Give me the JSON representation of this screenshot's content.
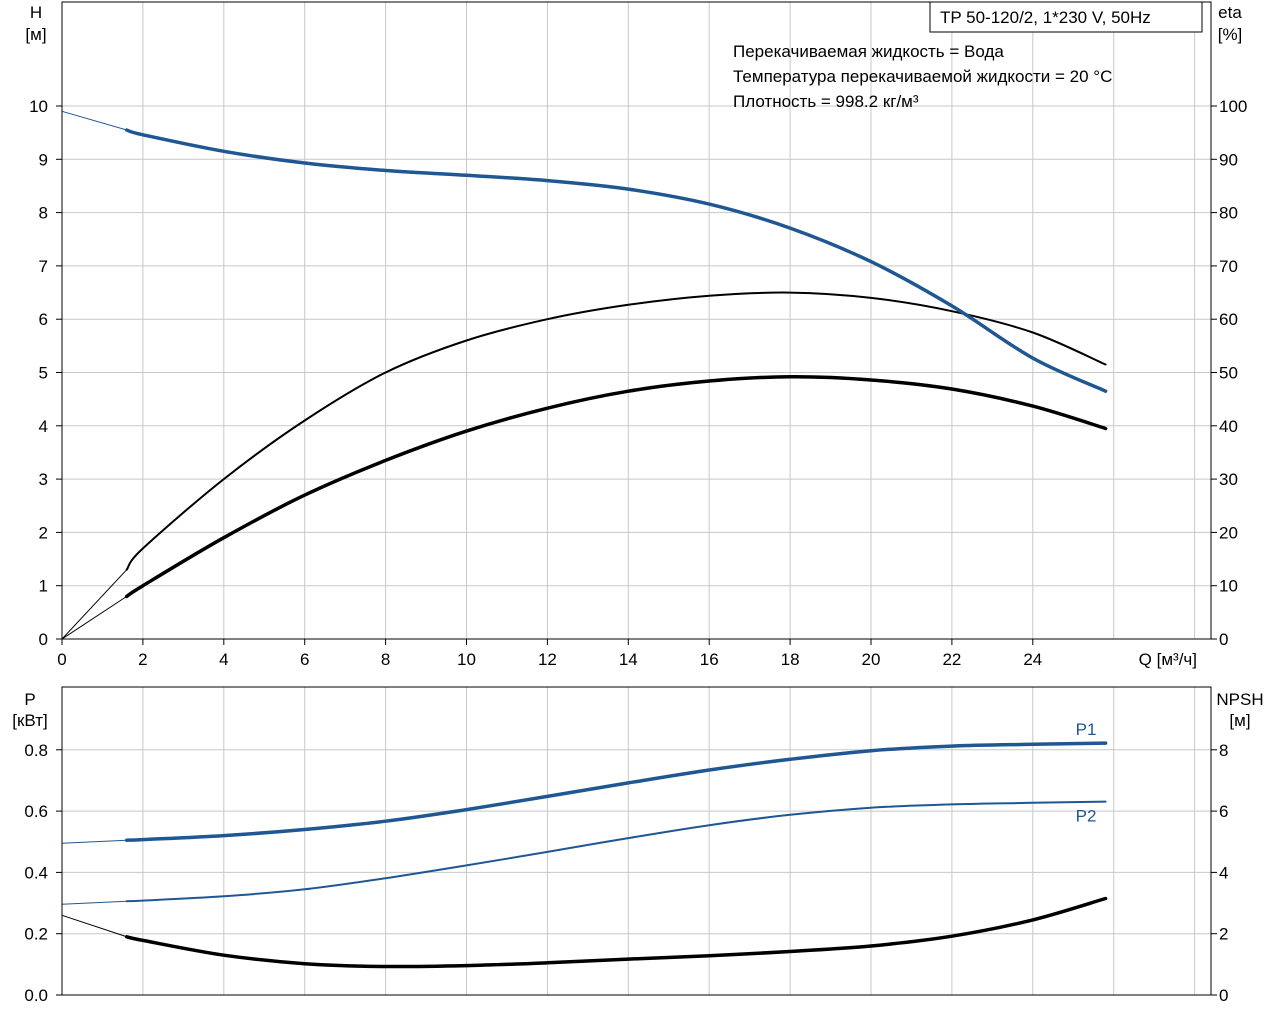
{
  "chart_data": [
    {
      "type": "line",
      "title_box": "TP 50-120/2, 1*230 V, 50Hz",
      "info_lines": [
        "Перекачиваемая жидкость = Вода",
        "Температура перекачиваемой жидкости = 20 °C",
        "Плотность = 998.2 кг/м³"
      ],
      "x_axis": {
        "label": "Q [м³/ч]",
        "range": [
          0,
          28
        ],
        "ticks": [
          0,
          2,
          4,
          6,
          8,
          10,
          12,
          14,
          16,
          18,
          20,
          22,
          24
        ]
      },
      "y_left": {
        "label_line1": "H",
        "label_line2": "[м]",
        "range": [
          0,
          12
        ],
        "ticks": [
          0,
          1,
          2,
          3,
          4,
          5,
          6,
          7,
          8,
          9,
          10
        ]
      },
      "y_right": {
        "label_line1": "eta",
        "label_line2": "[%]",
        "range": [
          0,
          120
        ],
        "ticks": [
          0,
          10,
          20,
          30,
          40,
          50,
          60,
          70,
          80,
          90,
          100
        ]
      },
      "grid": true,
      "series": [
        {
          "axis": "left",
          "color": "#1f5792",
          "extension": [
            [
              0,
              9.9
            ],
            [
              1.6,
              9.55
            ]
          ],
          "points": [
            [
              1.6,
              9.55
            ],
            [
              2,
              9.46
            ],
            [
              4,
              9.15
            ],
            [
              6,
              8.93
            ],
            [
              8,
              8.79
            ],
            [
              10,
              8.7
            ],
            [
              12,
              8.6
            ],
            [
              14,
              8.44
            ],
            [
              16,
              8.16
            ],
            [
              18,
              7.71
            ],
            [
              20,
              7.08
            ],
            [
              22,
              6.25
            ],
            [
              24,
              5.27
            ],
            [
              25.8,
              4.65
            ]
          ]
        },
        {
          "axis": "right",
          "color": "#000000",
          "extension": [
            [
              0,
              0
            ],
            [
              1.6,
              13
            ]
          ],
          "points": [
            [
              1.6,
              13
            ],
            [
              2,
              17
            ],
            [
              4,
              30
            ],
            [
              6,
              41
            ],
            [
              8,
              50
            ],
            [
              10,
              56
            ],
            [
              12,
              60
            ],
            [
              14,
              62.7
            ],
            [
              16,
              64.4
            ],
            [
              18,
              65
            ],
            [
              20,
              64
            ],
            [
              22,
              61.5
            ],
            [
              24,
              57.5
            ],
            [
              25.8,
              51.5
            ]
          ]
        },
        {
          "axis": "right",
          "color": "#000000",
          "extension": [
            [
              0,
              0
            ],
            [
              1.6,
              8
            ]
          ],
          "points": [
            [
              1.6,
              8
            ],
            [
              2,
              10
            ],
            [
              4,
              19
            ],
            [
              6,
              27
            ],
            [
              8,
              33.5
            ],
            [
              10,
              39
            ],
            [
              12,
              43.3
            ],
            [
              14,
              46.5
            ],
            [
              16,
              48.4
            ],
            [
              18,
              49.2
            ],
            [
              20,
              48.6
            ],
            [
              22,
              46.9
            ],
            [
              24,
              43.7
            ],
            [
              25.8,
              39.5
            ]
          ]
        }
      ]
    },
    {
      "type": "line",
      "x_axis": {
        "range": [
          0,
          28
        ]
      },
      "y_left": {
        "label_line1": "P",
        "label_line2": "[кВт]",
        "range": [
          0,
          1.0
        ],
        "ticks": [
          "0.0",
          "0.2",
          "0.4",
          "0.6",
          "0.8"
        ]
      },
      "y_right": {
        "label_line1": "NPSH",
        "label_line2": "[м]",
        "range": [
          0,
          10
        ],
        "ticks": [
          0,
          2,
          4,
          6,
          8
        ]
      },
      "grid": true,
      "series": [
        {
          "name": "P1",
          "axis": "left",
          "color": "#1f5792",
          "extension": [
            [
              0,
              0.495
            ],
            [
              1.6,
              0.505
            ]
          ],
          "points": [
            [
              1.6,
              0.505
            ],
            [
              2,
              0.507
            ],
            [
              4,
              0.52
            ],
            [
              6,
              0.54
            ],
            [
              8,
              0.567
            ],
            [
              10,
              0.605
            ],
            [
              12,
              0.648
            ],
            [
              14,
              0.692
            ],
            [
              16,
              0.734
            ],
            [
              18,
              0.769
            ],
            [
              20,
              0.797
            ],
            [
              22,
              0.812
            ],
            [
              24,
              0.818
            ],
            [
              25.8,
              0.822
            ]
          ]
        },
        {
          "name": "P2",
          "axis": "left",
          "color": "#1f5792",
          "extension": [
            [
              0,
              0.296
            ],
            [
              1.6,
              0.306
            ]
          ],
          "points": [
            [
              1.6,
              0.306
            ],
            [
              2,
              0.308
            ],
            [
              4,
              0.322
            ],
            [
              6,
              0.345
            ],
            [
              8,
              0.381
            ],
            [
              10,
              0.423
            ],
            [
              12,
              0.467
            ],
            [
              14,
              0.512
            ],
            [
              16,
              0.554
            ],
            [
              18,
              0.588
            ],
            [
              20,
              0.611
            ],
            [
              22,
              0.622
            ],
            [
              24,
              0.627
            ],
            [
              25.8,
              0.631
            ]
          ]
        },
        {
          "axis": "right",
          "color": "#000000",
          "extension": [
            [
              0,
              2.6
            ],
            [
              1.6,
              1.9
            ]
          ],
          "points": [
            [
              1.6,
              1.9
            ],
            [
              2,
              1.78
            ],
            [
              4,
              1.3
            ],
            [
              6,
              1.02
            ],
            [
              8,
              0.93
            ],
            [
              10,
              0.96
            ],
            [
              12,
              1.05
            ],
            [
              14,
              1.17
            ],
            [
              16,
              1.28
            ],
            [
              18,
              1.42
            ],
            [
              20,
              1.6
            ],
            [
              22,
              1.92
            ],
            [
              24,
              2.45
            ],
            [
              25.8,
              3.15
            ]
          ]
        }
      ]
    }
  ]
}
